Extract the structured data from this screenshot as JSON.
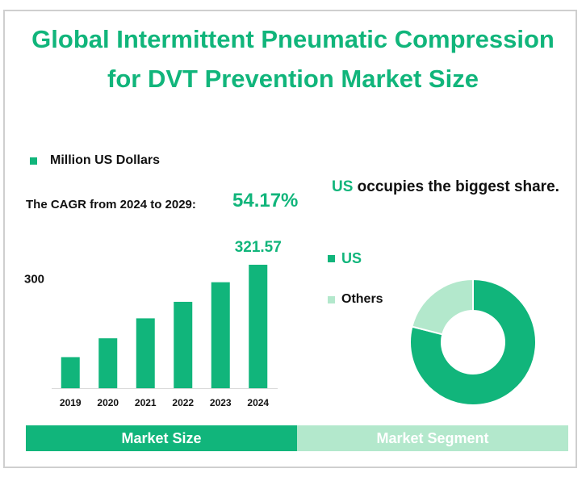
{
  "colors": {
    "primary": "#11b57b",
    "light": "#b3e8cc",
    "border": "#cfcfcf"
  },
  "title": {
    "line1": "Global Intermittent Pneumatic Compression",
    "line2": "for DVT Prevention Market Size"
  },
  "legend": {
    "unit_label": "Million US Dollars"
  },
  "cagr": {
    "label": "The CAGR from 2024 to 2029:",
    "value": "54.17%"
  },
  "share": {
    "highlight": "US",
    "rest": " occupies the biggest share."
  },
  "tabs": {
    "market_size": "Market Size",
    "market_segment": "Market Segment"
  },
  "chart_data": [
    {
      "type": "bar",
      "categories": [
        "2019",
        "2020",
        "2021",
        "2022",
        "2023",
        "2024"
      ],
      "values": [
        81,
        130,
        182,
        225,
        276,
        321.57
      ],
      "value_labels": [
        "",
        "",
        "",
        "",
        "",
        "321.57"
      ],
      "y_tick_labels": [
        "300"
      ],
      "y_tick_values": [
        300
      ],
      "ylim": [
        0,
        321.57
      ],
      "legend": [
        "Million US Dollars"
      ],
      "grid": false
    },
    {
      "type": "pie",
      "donut": true,
      "labels": [
        "US",
        "Others"
      ],
      "values": [
        79,
        21
      ],
      "colors": [
        "#11b57b",
        "#b3e8cc"
      ],
      "legend_position": "left"
    }
  ]
}
